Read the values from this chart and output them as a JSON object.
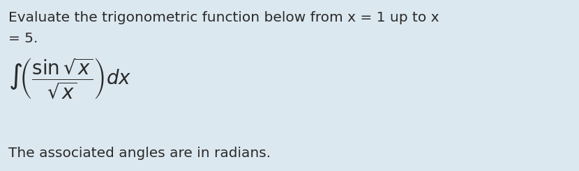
{
  "background_color": "#dce8f0",
  "text_line1": "Evaluate the trigonometric function below from x = 1 up to x",
  "text_line2": "= 5.",
  "formula": "$\\int\\!\\left(\\dfrac{\\sin\\sqrt{x}}{\\sqrt{x}}\\right)dx$",
  "text_line3": "The associated angles are in radians.",
  "font_size_text": 14.5,
  "font_size_formula": 20,
  "text_color": "#2a2a2a",
  "fig_width": 8.3,
  "fig_height": 2.46,
  "dpi": 100
}
